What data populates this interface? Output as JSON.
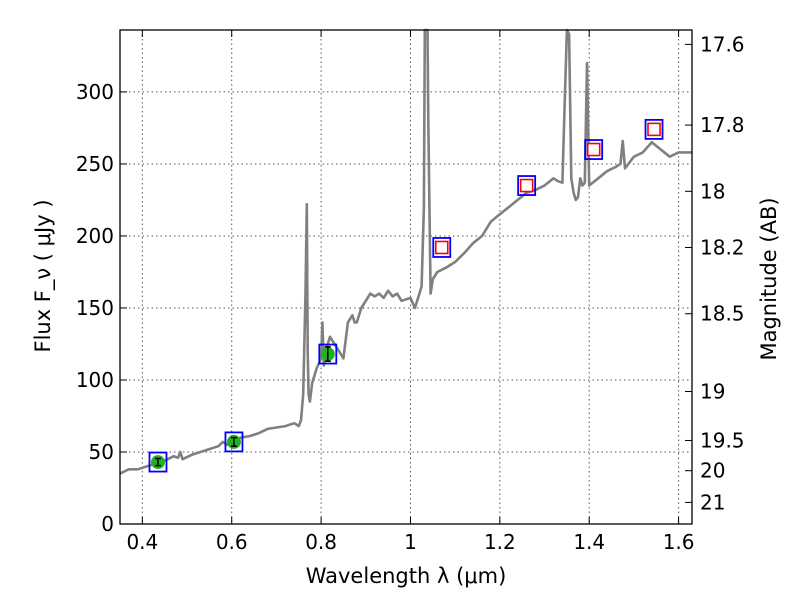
{
  "chart_data": {
    "type": "scatter",
    "xlabel": "Wavelength  λ (μm)",
    "ylabel": "Flux  F_ν  ( μJy )",
    "ylabel_right": "Magnitude (AB)",
    "xlim": [
      0.35,
      1.63
    ],
    "ylim": [
      0,
      343
    ],
    "grid": true,
    "x_ticks": [
      0.4,
      0.6,
      0.8,
      1.0,
      1.2,
      1.4,
      1.6
    ],
    "x_tick_labels": [
      "0.4",
      "0.6",
      "0.8",
      "1",
      "1.2",
      "1.4",
      "1.6"
    ],
    "y_ticks": [
      0,
      50,
      100,
      150,
      200,
      250,
      300
    ],
    "y_tick_labels": [
      "0",
      "50",
      "100",
      "150",
      "200",
      "250",
      "300"
    ],
    "right_ticks": [
      {
        "label": "17.6",
        "flux": 333
      },
      {
        "label": "17.8",
        "flux": 277
      },
      {
        "label": "18",
        "flux": 231
      },
      {
        "label": "18.2",
        "flux": 192
      },
      {
        "label": "18.5",
        "flux": 146
      },
      {
        "label": "19",
        "flux": 92
      },
      {
        "label": "19.5",
        "flux": 58
      },
      {
        "label": "20",
        "flux": 37
      },
      {
        "label": "21",
        "flux": 15
      }
    ],
    "colors": {
      "spectrum": "#808080",
      "model_box": "#0000ff",
      "upper_limit": "#ff0000",
      "detection": "#22b022",
      "grid": "#555555"
    },
    "spectrum": {
      "name": "",
      "x": [
        0.35,
        0.37,
        0.39,
        0.41,
        0.43,
        0.45,
        0.47,
        0.48,
        0.485,
        0.49,
        0.51,
        0.53,
        0.55,
        0.57,
        0.58,
        0.59,
        0.6,
        0.62,
        0.64,
        0.66,
        0.68,
        0.7,
        0.72,
        0.74,
        0.75,
        0.755,
        0.76,
        0.765,
        0.768,
        0.77,
        0.772,
        0.775,
        0.78,
        0.79,
        0.8,
        0.803,
        0.806,
        0.81,
        0.82,
        0.83,
        0.84,
        0.85,
        0.86,
        0.87,
        0.875,
        0.88,
        0.89,
        0.9,
        0.91,
        0.92,
        0.93,
        0.94,
        0.95,
        0.96,
        0.97,
        0.98,
        1.0,
        1.01,
        1.02,
        1.025,
        1.03,
        1.032,
        1.034,
        1.036,
        1.038,
        1.04,
        1.045,
        1.05,
        1.06,
        1.08,
        1.1,
        1.12,
        1.14,
        1.16,
        1.18,
        1.2,
        1.22,
        1.24,
        1.26,
        1.28,
        1.3,
        1.32,
        1.33,
        1.34,
        1.345,
        1.35,
        1.355,
        1.36,
        1.365,
        1.37,
        1.375,
        1.38,
        1.385,
        1.39,
        1.395,
        1.4,
        1.42,
        1.44,
        1.46,
        1.47,
        1.475,
        1.48,
        1.5,
        1.52,
        1.54,
        1.56,
        1.58,
        1.6,
        1.63
      ],
      "y": [
        35,
        38,
        38,
        40,
        42,
        44,
        47,
        46,
        50,
        45,
        48,
        50,
        52,
        54,
        57,
        55,
        56,
        60,
        61,
        63,
        66,
        67,
        68,
        70,
        68,
        72,
        90,
        160,
        222,
        120,
        90,
        85,
        98,
        108,
        115,
        140,
        110,
        120,
        130,
        125,
        120,
        115,
        140,
        145,
        140,
        140,
        150,
        155,
        160,
        158,
        160,
        157,
        162,
        158,
        160,
        155,
        157,
        150,
        160,
        165,
        220,
        345,
        345,
        345,
        345,
        280,
        160,
        170,
        175,
        178,
        182,
        188,
        195,
        200,
        210,
        215,
        220,
        225,
        230,
        232,
        235,
        240,
        238,
        237,
        290,
        345,
        340,
        240,
        230,
        225,
        227,
        240,
        235,
        237,
        320,
        235,
        240,
        245,
        248,
        250,
        266,
        247,
        255,
        258,
        265,
        260,
        255,
        258,
        258
      ]
    },
    "model_points": {
      "name": "",
      "x": [
        0.435,
        0.605,
        0.815,
        1.07,
        1.26,
        1.41,
        1.545
      ],
      "y": [
        43,
        57,
        118,
        192,
        235,
        260,
        274
      ]
    },
    "upper_limits": {
      "name": "",
      "x": [
        1.07,
        1.26,
        1.41,
        1.545
      ],
      "y": [
        192,
        235,
        260,
        274
      ]
    },
    "detections": {
      "name": "",
      "x": [
        0.435,
        0.605,
        0.815
      ],
      "y": [
        43,
        57,
        118
      ],
      "yerr": [
        2.5,
        3,
        5
      ]
    }
  }
}
